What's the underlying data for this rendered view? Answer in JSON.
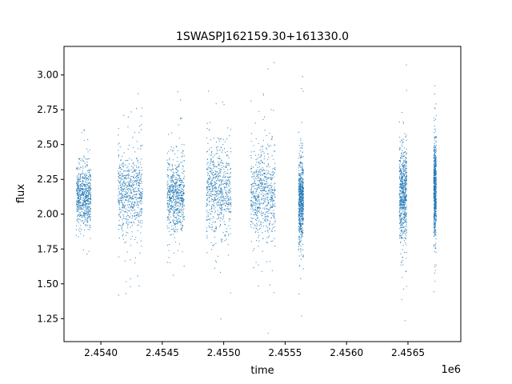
{
  "chart_data": {
    "type": "scatter",
    "title": "1SWASPJ162159.30+161330.0",
    "xlabel": "time",
    "ylabel": "flux",
    "x_offset_label": "1e6",
    "xlim": [
      2.4537,
      2.45693
    ],
    "ylim": [
      1.085,
      3.205
    ],
    "x_ticks": [
      2.454,
      2.4545,
      2.455,
      2.4555,
      2.456,
      2.4565
    ],
    "x_tick_labels": [
      "2.4540",
      "2.4545",
      "2.4550",
      "2.4555",
      "2.4560",
      "2.4565"
    ],
    "y_ticks": [
      1.25,
      1.5,
      1.75,
      2.0,
      2.25,
      2.5,
      2.75,
      3.0
    ],
    "y_tick_labels": [
      "1.25",
      "1.50",
      "1.75",
      "2.00",
      "2.25",
      "2.50",
      "2.75",
      "3.00"
    ],
    "grid": false,
    "legend": "none",
    "colors": {
      "points": "#1f77b4",
      "axes": "#000000",
      "background": "#ffffff"
    },
    "series": [
      {
        "clusters": [
          {
            "x_center": 2.45386,
            "x_halfwidth": 6e-05,
            "y_center": 2.13,
            "y_sd": 0.1
          },
          {
            "x_center": 2.45424,
            "x_halfwidth": 0.0001,
            "y_center": 2.16,
            "y_sd": 0.14
          },
          {
            "x_center": 2.45461,
            "x_halfwidth": 7e-05,
            "y_center": 2.13,
            "y_sd": 0.13
          },
          {
            "x_center": 2.45496,
            "x_halfwidth": 0.0001,
            "y_center": 2.17,
            "y_sd": 0.15
          },
          {
            "x_center": 2.45532,
            "x_halfwidth": 0.0001,
            "y_center": 2.15,
            "y_sd": 0.15
          },
          {
            "x_center": 2.45563,
            "x_halfwidth": 2e-05,
            "y_center": 2.1,
            "y_sd": 0.14
          },
          {
            "x_center": 2.45646,
            "x_halfwidth": 3e-05,
            "y_center": 2.15,
            "y_sd": 0.16
          },
          {
            "x_center": 2.45672,
            "x_halfwidth": 1e-05,
            "y_center": 2.18,
            "y_sd": 0.16
          }
        ]
      }
    ]
  }
}
